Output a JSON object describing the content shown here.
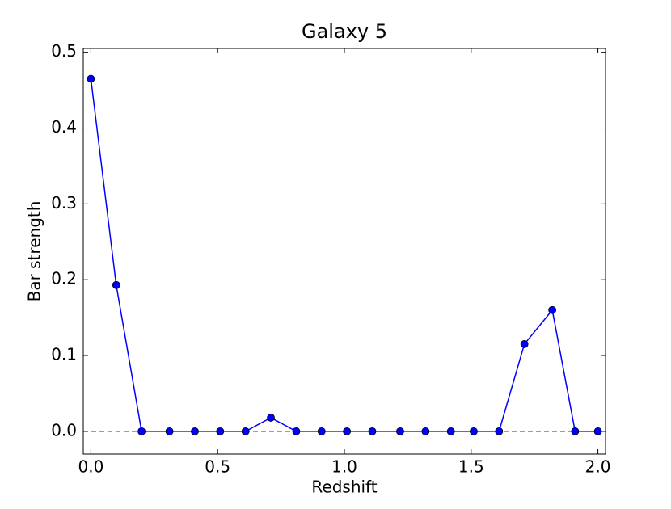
{
  "chart_data": {
    "type": "line",
    "title": "Galaxy 5",
    "x_label": "Redshift",
    "y_label": "Bar strength",
    "x": [
      0,
      0.1,
      0.2,
      0.31,
      0.41,
      0.51,
      0.61,
      0.71,
      0.81,
      0.91,
      1.01,
      1.11,
      1.22,
      1.32,
      1.42,
      1.51,
      1.61,
      1.71,
      1.82,
      1.91,
      2.0
    ],
    "series": [
      {
        "color": "#0000ff",
        "values": [
          0.465,
          0.193,
          0,
          0,
          0,
          0,
          0,
          0.018,
          0,
          0,
          0,
          0,
          0,
          0,
          0,
          0,
          0,
          0.115,
          0.16,
          0,
          0
        ]
      }
    ],
    "xlim": [
      -0.03,
      2.03
    ],
    "ylim": [
      -0.03,
      0.505
    ],
    "xticks": [
      {
        "value": 0,
        "label": "0.0"
      },
      {
        "value": 0.5,
        "label": "0.5"
      },
      {
        "value": 1,
        "label": "1.0"
      },
      {
        "value": 1.5,
        "label": "1.5"
      },
      {
        "value": 2,
        "label": "2.0"
      }
    ],
    "yticks": [
      {
        "value": 0,
        "label": "0.0"
      },
      {
        "value": 0.1,
        "label": "0.1"
      },
      {
        "value": 0.2,
        "label": "0.2"
      },
      {
        "value": 0.3,
        "label": "0.3"
      },
      {
        "value": 0.4,
        "label": "0.4"
      },
      {
        "value": 0.5,
        "label": "0.5"
      }
    ],
    "hline": 0,
    "grid": false
  }
}
